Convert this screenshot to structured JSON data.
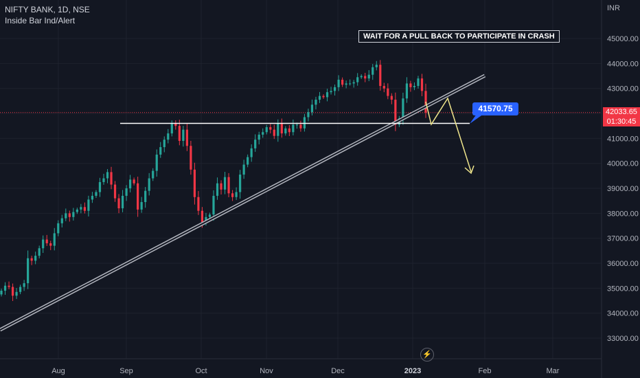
{
  "legend": {
    "symbol": "NIFTY BANK, 1D, NSE",
    "indicator": "Inside Bar Ind/Alert"
  },
  "currency": "INR",
  "annotation": "WAIT FOR A PULL BACK TO PARTICIPATE IN CRASH",
  "price_tag": "41570.75",
  "last_price": {
    "value": "42033.65",
    "countdown": "01:30:45"
  },
  "colors": {
    "background": "#131722",
    "up": "#26a69a",
    "down": "#f23645",
    "annotation_blue": "#2962ff",
    "projection": "#f0e68c"
  },
  "chart_data": {
    "type": "line",
    "title": "",
    "ylabel": "",
    "yticks": [
      "33000.00",
      "34000.00",
      "35000.00",
      "36000.00",
      "37000.00",
      "38000.00",
      "39000.00",
      "40000.00",
      "41000.00",
      "42000.00",
      "43000.00",
      "44000.00",
      "45000.00"
    ],
    "xticks": [
      "Aug",
      "Sep",
      "Oct",
      "Nov",
      "Dec",
      "2023",
      "Feb",
      "Mar"
    ],
    "ylim": [
      32800,
      46200
    ],
    "series": [
      {
        "values": [
          34900,
          35100,
          35050,
          34700,
          34850,
          35050,
          35200,
          36200,
          36100,
          36300,
          36600,
          36950,
          36800,
          36700,
          37200,
          37600,
          37800,
          38000,
          37850,
          38050,
          38150,
          38250,
          38100,
          38550,
          38700,
          38850,
          39250,
          39400,
          39650,
          39150,
          38600,
          38200,
          38700,
          39000,
          39350,
          39200,
          38150,
          38450,
          38900,
          39400,
          39700,
          40350,
          40650,
          40950,
          41200,
          41600,
          41500,
          40900,
          41350,
          40700,
          39750,
          38650,
          38100,
          37650,
          37850,
          37950,
          38700,
          39200,
          38950,
          39450,
          38800,
          38650,
          38850,
          39550,
          39950,
          40250,
          40600,
          40950,
          41150,
          41250,
          41450,
          41350,
          41100,
          41600,
          41200,
          41400,
          41250,
          41550,
          41550,
          41400,
          41850,
          42050,
          42350,
          42550,
          42700,
          42650,
          42850,
          42900,
          43050,
          43350,
          43150,
          43200,
          43200,
          43250,
          43450,
          43500,
          43400,
          43550,
          43850,
          43950,
          43100,
          43000,
          42700,
          42550,
          41550,
          41800,
          42600,
          43200,
          43050,
          43100,
          43400,
          42900,
          42033.65
        ]
      }
    ]
  }
}
